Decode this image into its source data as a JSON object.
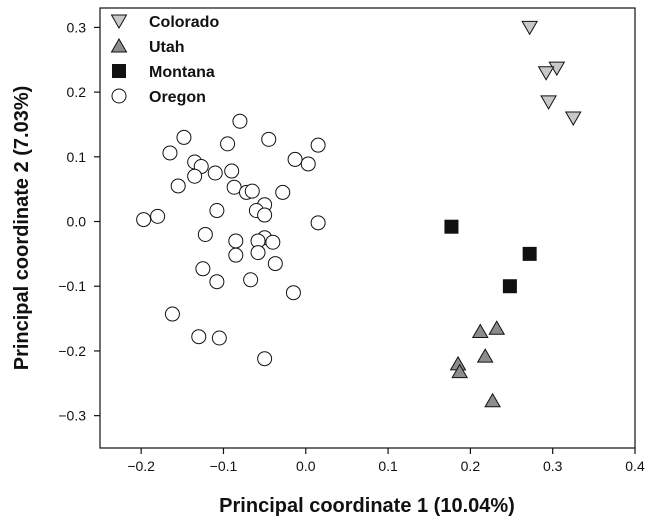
{
  "chart_data": {
    "type": "scatter",
    "xlabel": "Principal coordinate 1 (10.04%)",
    "ylabel": "Principal coordinate 2 (7.03%)",
    "xlim": [
      -0.25,
      0.4
    ],
    "ylim": [
      -0.35,
      0.33
    ],
    "xticks": [
      -0.2,
      -0.1,
      0.0,
      0.1,
      0.2,
      0.3,
      0.4
    ],
    "xtick_labels": [
      "−0.2",
      "−0.1",
      "0.0",
      "0.1",
      "0.2",
      "0.3",
      "0.4"
    ],
    "yticks": [
      -0.3,
      -0.2,
      -0.1,
      0.0,
      0.1,
      0.2,
      0.3
    ],
    "ytick_labels": [
      "−0.3",
      "−0.2",
      "−0.1",
      "0.0",
      "0.1",
      "0.2",
      "0.3"
    ],
    "grid": false,
    "legend_position": "top-left",
    "series": [
      {
        "name": "Colorado",
        "marker": "triangle-down",
        "color": "#c8c8c8",
        "points": [
          [
            0.272,
            0.3
          ],
          [
            0.305,
            0.237
          ],
          [
            0.292,
            0.23
          ],
          [
            0.295,
            0.185
          ],
          [
            0.325,
            0.16
          ]
        ]
      },
      {
        "name": "Utah",
        "marker": "triangle-up",
        "color": "#8c8c8c",
        "points": [
          [
            0.232,
            -0.165
          ],
          [
            0.212,
            -0.17
          ],
          [
            0.218,
            -0.208
          ],
          [
            0.185,
            -0.22
          ],
          [
            0.187,
            -0.232
          ],
          [
            0.227,
            -0.277
          ]
        ]
      },
      {
        "name": "Montana",
        "marker": "square",
        "color": "#111111",
        "points": [
          [
            0.177,
            -0.008
          ],
          [
            0.272,
            -0.05
          ],
          [
            0.248,
            -0.1
          ]
        ]
      },
      {
        "name": "Oregon",
        "marker": "circle",
        "color": "#ffffff",
        "points": [
          [
            -0.08,
            0.155
          ],
          [
            -0.148,
            0.13
          ],
          [
            -0.045,
            0.127
          ],
          [
            0.015,
            0.118
          ],
          [
            -0.095,
            0.12
          ],
          [
            -0.165,
            0.106
          ],
          [
            -0.135,
            0.092
          ],
          [
            -0.013,
            0.096
          ],
          [
            0.003,
            0.089
          ],
          [
            -0.127,
            0.085
          ],
          [
            -0.09,
            0.078
          ],
          [
            -0.11,
            0.075
          ],
          [
            -0.135,
            0.07
          ],
          [
            -0.155,
            0.055
          ],
          [
            -0.087,
            0.053
          ],
          [
            -0.072,
            0.045
          ],
          [
            -0.065,
            0.047
          ],
          [
            -0.028,
            0.045
          ],
          [
            -0.05,
            0.026
          ],
          [
            -0.108,
            0.017
          ],
          [
            -0.06,
            0.017
          ],
          [
            -0.05,
            0.01
          ],
          [
            -0.18,
            0.008
          ],
          [
            -0.197,
            0.003
          ],
          [
            0.015,
            -0.002
          ],
          [
            -0.122,
            -0.02
          ],
          [
            -0.05,
            -0.025
          ],
          [
            -0.085,
            -0.03
          ],
          [
            -0.058,
            -0.03
          ],
          [
            -0.04,
            -0.032
          ],
          [
            -0.085,
            -0.052
          ],
          [
            -0.058,
            -0.048
          ],
          [
            -0.037,
            -0.065
          ],
          [
            -0.125,
            -0.073
          ],
          [
            -0.108,
            -0.093
          ],
          [
            -0.067,
            -0.09
          ],
          [
            -0.015,
            -0.11
          ],
          [
            -0.162,
            -0.143
          ],
          [
            -0.13,
            -0.178
          ],
          [
            -0.105,
            -0.18
          ],
          [
            -0.05,
            -0.212
          ]
        ]
      }
    ]
  }
}
